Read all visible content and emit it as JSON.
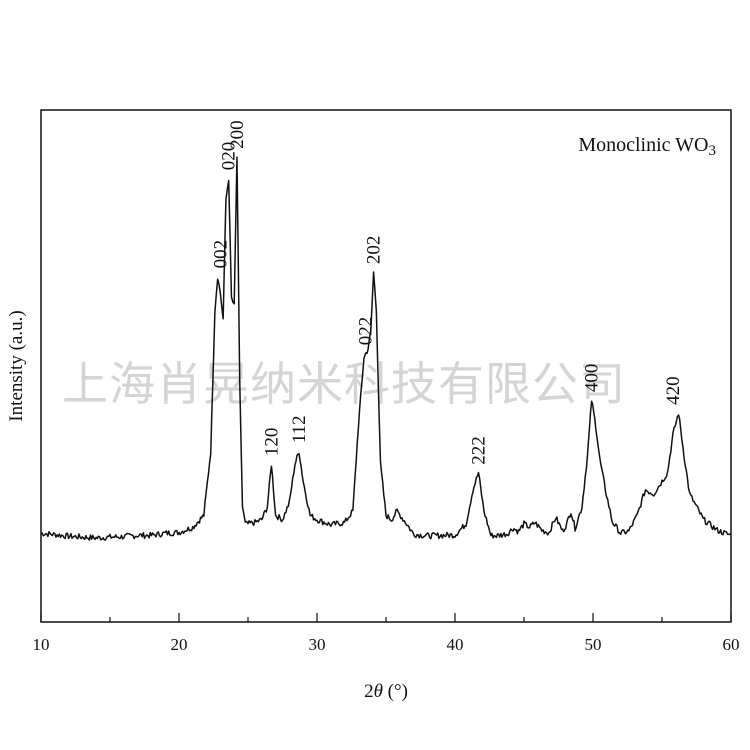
{
  "watermark": "上海肖晃纳米科技有限公司",
  "chart_data": {
    "type": "line",
    "title": "",
    "legend_text": "Monoclinic WO",
    "legend_subscript": "3",
    "legend_position": "top-right",
    "xlabel_prefix": "2",
    "xlabel_symbol": "θ",
    "xlabel_suffix": " (°)",
    "ylabel": "Intensity (a.u.)",
    "xlim": [
      10,
      60
    ],
    "ylim": [
      -15,
      105
    ],
    "grid": false,
    "x_ticks": [
      10,
      20,
      30,
      40,
      50,
      60
    ],
    "x_tick_labels": [
      "10",
      "20",
      "30",
      "40",
      "50",
      "60"
    ],
    "series": [
      {
        "x": [
          10,
          11,
          12,
          13,
          14,
          15,
          16,
          17,
          18,
          19,
          20,
          21,
          21.8,
          22.3,
          22.6,
          22.8,
          23.0,
          23.2,
          23.4,
          23.6,
          23.8,
          24.0,
          24.2,
          24.4,
          24.6,
          24.8,
          25.0,
          25.5,
          26.0,
          26.4,
          26.7,
          27.0,
          27.5,
          28.0,
          28.4,
          28.7,
          29.0,
          29.5,
          30,
          31,
          32,
          32.6,
          33.0,
          33.4,
          33.7,
          33.9,
          34.1,
          34.3,
          34.6,
          35.0,
          35.4,
          35.8,
          36.5,
          37,
          38,
          39,
          40,
          40.8,
          41.3,
          41.7,
          42.1,
          42.6,
          43,
          43.8,
          44.2,
          44.6,
          45.0,
          45.4,
          45.8,
          46.3,
          46.8,
          47.3,
          47.8,
          48.1,
          48.4,
          48.7,
          49.2,
          49.6,
          49.9,
          50.2,
          50.5,
          50.9,
          51.4,
          52,
          52.6,
          53.2,
          53.8,
          54.4,
          55.0,
          55.4,
          55.8,
          56.2,
          56.6,
          57,
          58,
          59,
          60
        ],
        "y": [
          5.8,
          5.5,
          5.1,
          4.9,
          4.7,
          4.9,
          5.0,
          5.3,
          5.3,
          5.8,
          6.0,
          7.2,
          10,
          25,
          58,
          66,
          62,
          56,
          84,
          89,
          61,
          59,
          94,
          41,
          12,
          8,
          8,
          8.3,
          9,
          12,
          22,
          10,
          9,
          13,
          22,
          25,
          18,
          10,
          9,
          7.8,
          8.3,
          11,
          31,
          47,
          49,
          53,
          67,
          58,
          22,
          10,
          9,
          11,
          8,
          5.6,
          5.2,
          5.3,
          5.4,
          8,
          16,
          20,
          11,
          5.3,
          5.2,
          5.7,
          7,
          6.2,
          8,
          7.2,
          8.3,
          6.5,
          5.9,
          9.5,
          6.3,
          8,
          11,
          7,
          12,
          24,
          37,
          31,
          23,
          16,
          8.5,
          5.8,
          6.3,
          10,
          16,
          15,
          18,
          20,
          29,
          34,
          24,
          15,
          9,
          6.5,
          5.3
        ]
      }
    ],
    "peak_labels": [
      {
        "text": "002",
        "x": 23.0,
        "y": 66
      },
      {
        "text": "020",
        "x": 23.6,
        "y": 89
      },
      {
        "text": "200",
        "x": 24.2,
        "y": 94
      },
      {
        "text": "120",
        "x": 26.7,
        "y": 22
      },
      {
        "text": "112",
        "x": 28.7,
        "y": 25
      },
      {
        "text": "022",
        "x": 33.5,
        "y": 48
      },
      {
        "text": "202",
        "x": 34.1,
        "y": 67
      },
      {
        "text": "222",
        "x": 41.7,
        "y": 20
      },
      {
        "text": "400",
        "x": 49.9,
        "y": 37
      },
      {
        "text": "420",
        "x": 55.8,
        "y": 34
      }
    ]
  }
}
